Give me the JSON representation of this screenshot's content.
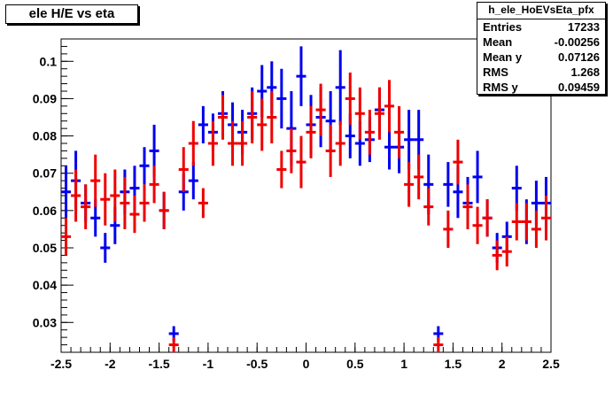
{
  "title": "ele H/E vs eta",
  "stats": {
    "name": "h_ele_HoEVsEta_pfx",
    "rows": [
      {
        "label": "Entries",
        "value": "17233"
      },
      {
        "label": "Mean",
        "value": "-0.00256"
      },
      {
        "label": "Mean y",
        "value": "0.07126"
      },
      {
        "label": "RMS",
        "value": "1.268"
      },
      {
        "label": "RMS y",
        "value": "0.09459"
      }
    ]
  },
  "chart_data": {
    "type": "scatter",
    "title": "ele H/E vs eta",
    "xlim": [
      -2.5,
      2.5
    ],
    "ylim": [
      0.022,
      0.106
    ],
    "x_ticks": [
      "-2.5",
      "-2",
      "-1.5",
      "-1",
      "-0.5",
      "0",
      "0.5",
      "1",
      "1.5",
      "2",
      "2.5"
    ],
    "y_ticks": [
      "0.03",
      "0.04",
      "0.05",
      "0.06",
      "0.07",
      "0.08",
      "0.09",
      "0.1"
    ],
    "x_tick_values": [
      -2.5,
      -2,
      -1.5,
      -1,
      -0.5,
      0,
      0.5,
      1,
      1.5,
      2,
      2.5
    ],
    "y_tick_values": [
      0.03,
      0.04,
      0.05,
      0.06,
      0.07,
      0.08,
      0.09,
      0.1
    ],
    "bin_half_width": 0.05,
    "series": [
      {
        "color": "#0000ee",
        "points": [
          [
            -2.45,
            0.065,
            0.007
          ],
          [
            -2.35,
            0.068,
            0.008
          ],
          [
            -2.25,
            0.062,
            0.005
          ],
          [
            -2.15,
            0.058,
            0.005
          ],
          [
            -2.05,
            0.05,
            0.004
          ],
          [
            -1.95,
            0.056,
            0.005
          ],
          [
            -1.85,
            0.065,
            0.006
          ],
          [
            -1.75,
            0.066,
            0.006
          ],
          [
            -1.65,
            0.072,
            0.005
          ],
          [
            -1.55,
            0.076,
            0.007
          ],
          [
            -1.45,
            0.06,
            0.005
          ],
          [
            -1.35,
            0.027,
            0.002
          ],
          [
            -1.25,
            0.065,
            0.005
          ],
          [
            -1.15,
            0.068,
            0.005
          ],
          [
            -1.05,
            0.083,
            0.005
          ],
          [
            -0.95,
            0.081,
            0.005
          ],
          [
            -0.85,
            0.086,
            0.006
          ],
          [
            -0.75,
            0.083,
            0.006
          ],
          [
            -0.65,
            0.081,
            0.006
          ],
          [
            -0.55,
            0.086,
            0.007
          ],
          [
            -0.45,
            0.092,
            0.007
          ],
          [
            -0.35,
            0.093,
            0.007
          ],
          [
            -0.25,
            0.09,
            0.008
          ],
          [
            -0.15,
            0.082,
            0.01
          ],
          [
            -0.05,
            0.096,
            0.008
          ],
          [
            0.05,
            0.083,
            0.008
          ],
          [
            0.15,
            0.085,
            0.008
          ],
          [
            0.25,
            0.084,
            0.008
          ],
          [
            0.35,
            0.093,
            0.01
          ],
          [
            0.45,
            0.08,
            0.006
          ],
          [
            0.55,
            0.078,
            0.006
          ],
          [
            0.65,
            0.079,
            0.006
          ],
          [
            0.75,
            0.087,
            0.006
          ],
          [
            0.85,
            0.077,
            0.006
          ],
          [
            0.95,
            0.077,
            0.007
          ],
          [
            1.05,
            0.079,
            0.008
          ],
          [
            1.15,
            0.079,
            0.008
          ],
          [
            1.25,
            0.067,
            0.008
          ],
          [
            1.35,
            0.027,
            0.002
          ],
          [
            1.45,
            0.067,
            0.006
          ],
          [
            1.55,
            0.065,
            0.007
          ],
          [
            1.65,
            0.062,
            0.007
          ],
          [
            1.75,
            0.069,
            0.007
          ],
          [
            1.85,
            0.058,
            0.005
          ],
          [
            1.95,
            0.05,
            0.004
          ],
          [
            2.05,
            0.053,
            0.004
          ],
          [
            2.15,
            0.066,
            0.006
          ],
          [
            2.25,
            0.057,
            0.006
          ],
          [
            2.35,
            0.062,
            0.006
          ],
          [
            2.45,
            0.062,
            0.007
          ]
        ]
      },
      {
        "color": "#ee0000",
        "points": [
          [
            -2.45,
            0.053,
            0.005
          ],
          [
            -2.35,
            0.064,
            0.007
          ],
          [
            -2.25,
            0.061,
            0.006
          ],
          [
            -2.15,
            0.068,
            0.007
          ],
          [
            -2.05,
            0.063,
            0.007
          ],
          [
            -1.95,
            0.064,
            0.007
          ],
          [
            -1.85,
            0.062,
            0.007
          ],
          [
            -1.75,
            0.059,
            0.005
          ],
          [
            -1.65,
            0.062,
            0.005
          ],
          [
            -1.55,
            0.067,
            0.005
          ],
          [
            -1.45,
            0.06,
            0.005
          ],
          [
            -1.35,
            0.024,
            0.002
          ],
          [
            -1.25,
            0.071,
            0.006
          ],
          [
            -1.15,
            0.078,
            0.006
          ],
          [
            -1.05,
            0.062,
            0.004
          ],
          [
            -0.95,
            0.078,
            0.006
          ],
          [
            -0.85,
            0.085,
            0.006
          ],
          [
            -0.75,
            0.078,
            0.006
          ],
          [
            -0.65,
            0.078,
            0.006
          ],
          [
            -0.55,
            0.085,
            0.007
          ],
          [
            -0.45,
            0.083,
            0.007
          ],
          [
            -0.35,
            0.085,
            0.007
          ],
          [
            -0.25,
            0.071,
            0.005
          ],
          [
            -0.15,
            0.076,
            0.006
          ],
          [
            -0.05,
            0.073,
            0.007
          ],
          [
            0.05,
            0.081,
            0.007
          ],
          [
            0.15,
            0.087,
            0.007
          ],
          [
            0.25,
            0.076,
            0.007
          ],
          [
            0.35,
            0.078,
            0.006
          ],
          [
            0.45,
            0.09,
            0.007
          ],
          [
            0.55,
            0.086,
            0.007
          ],
          [
            0.65,
            0.081,
            0.006
          ],
          [
            0.75,
            0.086,
            0.007
          ],
          [
            0.85,
            0.088,
            0.007
          ],
          [
            0.95,
            0.081,
            0.007
          ],
          [
            1.05,
            0.067,
            0.006
          ],
          [
            1.15,
            0.069,
            0.006
          ],
          [
            1.25,
            0.061,
            0.005
          ],
          [
            1.35,
            0.024,
            0.002
          ],
          [
            1.45,
            0.055,
            0.005
          ],
          [
            1.55,
            0.073,
            0.006
          ],
          [
            1.65,
            0.061,
            0.006
          ],
          [
            1.75,
            0.056,
            0.005
          ],
          [
            1.85,
            0.058,
            0.005
          ],
          [
            1.95,
            0.048,
            0.004
          ],
          [
            2.05,
            0.049,
            0.004
          ],
          [
            2.15,
            0.057,
            0.005
          ],
          [
            2.25,
            0.057,
            0.005
          ],
          [
            2.35,
            0.055,
            0.005
          ],
          [
            2.45,
            0.058,
            0.006
          ]
        ]
      }
    ]
  }
}
